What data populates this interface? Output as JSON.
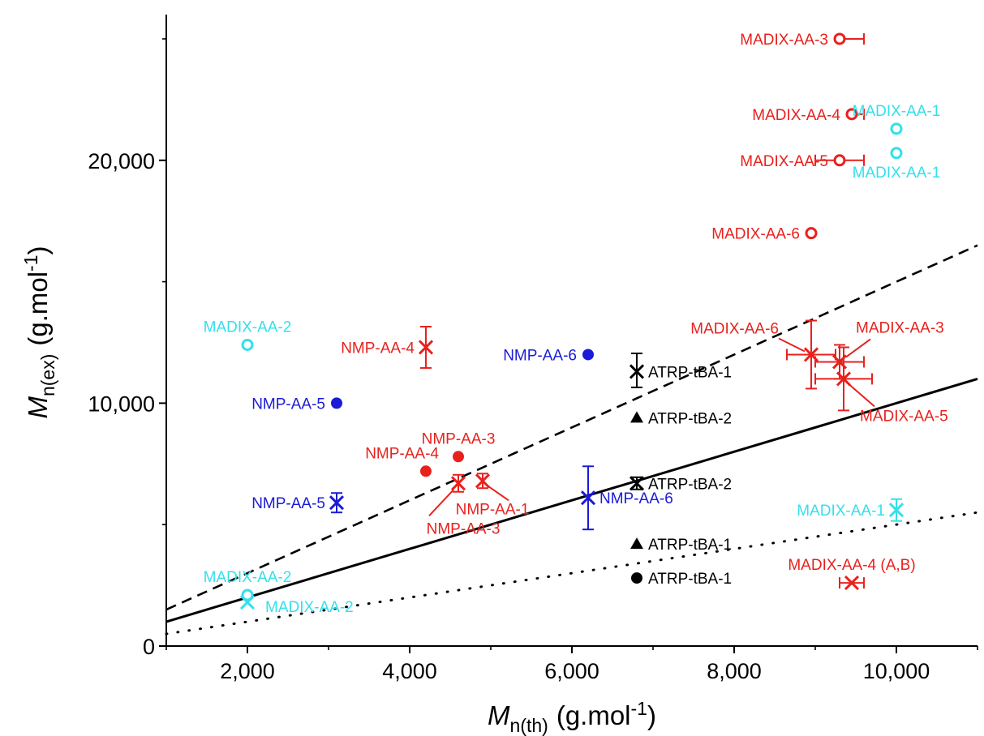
{
  "chart_data": {
    "type": "scatter",
    "xlabel": {
      "symbol": "M",
      "sub": "n(th)",
      "unit": "(g.mol",
      "exp": "-1",
      "close": ")"
    },
    "ylabel": {
      "symbol": "M",
      "sub": "n(ex)",
      "unit": "(g.mol",
      "exp": "-1",
      "close": ")"
    },
    "xlim": [
      1000,
      11000
    ],
    "ylim": [
      0,
      26000
    ],
    "x_ticks": [
      {
        "value": 2000,
        "label": "2,000"
      },
      {
        "value": 4000,
        "label": "4,000"
      },
      {
        "value": 6000,
        "label": "6,000"
      },
      {
        "value": 8000,
        "label": "8,000"
      },
      {
        "value": 10000,
        "label": "10,000"
      }
    ],
    "y_ticks": [
      {
        "value": 0,
        "label": "0"
      },
      {
        "value": 10000,
        "label": "10,000"
      },
      {
        "value": 20000,
        "label": "20,000"
      }
    ],
    "colors": {
      "red": "#e8211d",
      "blue": "#1a1ad8",
      "cyan": "#33e0ec",
      "black": "#000000"
    },
    "reference_lines": [
      {
        "style": "dashed",
        "x": [
          1000,
          11000
        ],
        "y": [
          1500,
          16500
        ]
      },
      {
        "style": "solid",
        "x": [
          1000,
          11000
        ],
        "y": [
          1000,
          11000
        ]
      },
      {
        "style": "dotted",
        "x": [
          1000,
          11000
        ],
        "y": [
          500,
          5500
        ]
      }
    ],
    "points": [
      {
        "label": "MADIX-AA-3",
        "x": 9300,
        "y": 25000,
        "marker": "open-circle",
        "color": "red",
        "xerr": [
          0,
          300
        ],
        "label_side": "left"
      },
      {
        "label": "MADIX-AA-4",
        "x": 9450,
        "y": 21900,
        "marker": "open-circle",
        "color": "red",
        "xerr": [
          0,
          150
        ],
        "label_side": "left"
      },
      {
        "label": "MADIX-AA-5",
        "x": 9300,
        "y": 20000,
        "marker": "open-circle",
        "color": "red",
        "xerr": [
          300,
          300
        ],
        "label_side": "left"
      },
      {
        "label": "MADIX-AA-6",
        "x": 8950,
        "y": 17000,
        "marker": "open-circle",
        "color": "red",
        "label_side": "left"
      },
      {
        "label": "MADIX-AA-1",
        "x": 10000,
        "y": 21300,
        "marker": "open-circle",
        "color": "cyan",
        "label_side": "above"
      },
      {
        "label": "MADIX-AA-1",
        "x": 10000,
        "y": 20300,
        "marker": "open-circle",
        "color": "cyan",
        "label_side": "below"
      },
      {
        "label": "MADIX-AA-2",
        "x": 2000,
        "y": 12400,
        "marker": "open-circle",
        "color": "cyan",
        "label_side": "above"
      },
      {
        "label": "NMP-AA-4",
        "x": 4200,
        "y": 12300,
        "marker": "cross",
        "color": "red",
        "yerr": [
          850,
          850
        ],
        "label_side": "left"
      },
      {
        "label": "NMP-AA-6",
        "x": 6200,
        "y": 12000,
        "marker": "filled-circle",
        "color": "blue",
        "label_side": "left"
      },
      {
        "label": "ATRP-tBA-1",
        "x": 6800,
        "y": 11300,
        "marker": "cross",
        "color": "black",
        "yerr": [
          650,
          750
        ],
        "label_side": "right"
      },
      {
        "label": "NMP-AA-5",
        "x": 3100,
        "y": 10000,
        "marker": "filled-circle",
        "color": "blue",
        "label_side": "left"
      },
      {
        "label": "ATRP-tBA-2",
        "x": 6800,
        "y": 9400,
        "marker": "filled-triangle",
        "color": "black",
        "label_side": "right"
      },
      {
        "label": "MADIX-AA-6",
        "x": 8950,
        "y": 12000,
        "marker": "cross",
        "color": "red",
        "yerr": [
          1400,
          1400
        ],
        "xerr": [
          300,
          300
        ],
        "label_side": "leader-upleft"
      },
      {
        "label": "MADIX-AA-3",
        "x": 9300,
        "y": 11700,
        "marker": "cross",
        "color": "red",
        "yerr": [
          700,
          700
        ],
        "xerr": [
          300,
          300
        ],
        "label_side": "leader-upright"
      },
      {
        "label": "MADIX-AA-5",
        "x": 9350,
        "y": 11000,
        "marker": "cross",
        "color": "red",
        "yerr": [
          1300,
          1300
        ],
        "xerr": [
          350,
          350
        ],
        "label_side": "leader-downright"
      },
      {
        "label": "NMP-AA-3",
        "x": 4600,
        "y": 7800,
        "marker": "filled-circle",
        "color": "red",
        "label_side": "above"
      },
      {
        "label": "NMP-AA-4",
        "x": 4200,
        "y": 7200,
        "marker": "filled-circle",
        "color": "red",
        "label_side": "aboveleft"
      },
      {
        "label": "NMP-AA-3",
        "x": 4600,
        "y": 6700,
        "marker": "cross",
        "color": "red",
        "yerr": [
          350,
          350
        ],
        "label_side": "leader-downleft"
      },
      {
        "label": "NMP-AA-1",
        "x": 4900,
        "y": 6800,
        "marker": "cross",
        "color": "red",
        "yerr": [
          300,
          300
        ],
        "label_side": "leader-downright"
      },
      {
        "label": "ATRP-tBA-2",
        "x": 6800,
        "y": 6700,
        "marker": "cross",
        "color": "black",
        "yerr": [
          250,
          250
        ],
        "label_side": "right"
      },
      {
        "label": "NMP-AA-5",
        "x": 3100,
        "y": 5900,
        "marker": "cross",
        "color": "blue",
        "yerr": [
          400,
          400
        ],
        "label_side": "left"
      },
      {
        "label": "NMP-AA-6",
        "x": 6200,
        "y": 6100,
        "marker": "cross",
        "color": "blue",
        "yerr": [
          1300,
          1300
        ],
        "label_side": "right"
      },
      {
        "label": "MADIX-AA-1",
        "x": 10000,
        "y": 5600,
        "marker": "cross",
        "color": "cyan",
        "yerr": [
          450,
          450
        ],
        "label_side": "left"
      },
      {
        "label": "ATRP-tBA-1",
        "x": 6800,
        "y": 4200,
        "marker": "filled-triangle",
        "color": "black",
        "label_side": "right"
      },
      {
        "label": "MADIX-AA-4 (A,B)",
        "x": 9450,
        "y": 2600,
        "marker": "cross",
        "color": "red",
        "xerr": [
          150,
          150
        ],
        "label_side": "above"
      },
      {
        "label": "ATRP-tBA-1",
        "x": 6800,
        "y": 2800,
        "marker": "filled-circle",
        "color": "black",
        "label_side": "right"
      },
      {
        "label": "MADIX-AA-2",
        "x": 2000,
        "y": 2100,
        "marker": "open-circle",
        "color": "cyan",
        "label_side": "above"
      },
      {
        "label": "MADIX-AA-2",
        "x": 2000,
        "y": 1800,
        "marker": "cross",
        "color": "cyan",
        "label_side": "belowright"
      }
    ]
  }
}
